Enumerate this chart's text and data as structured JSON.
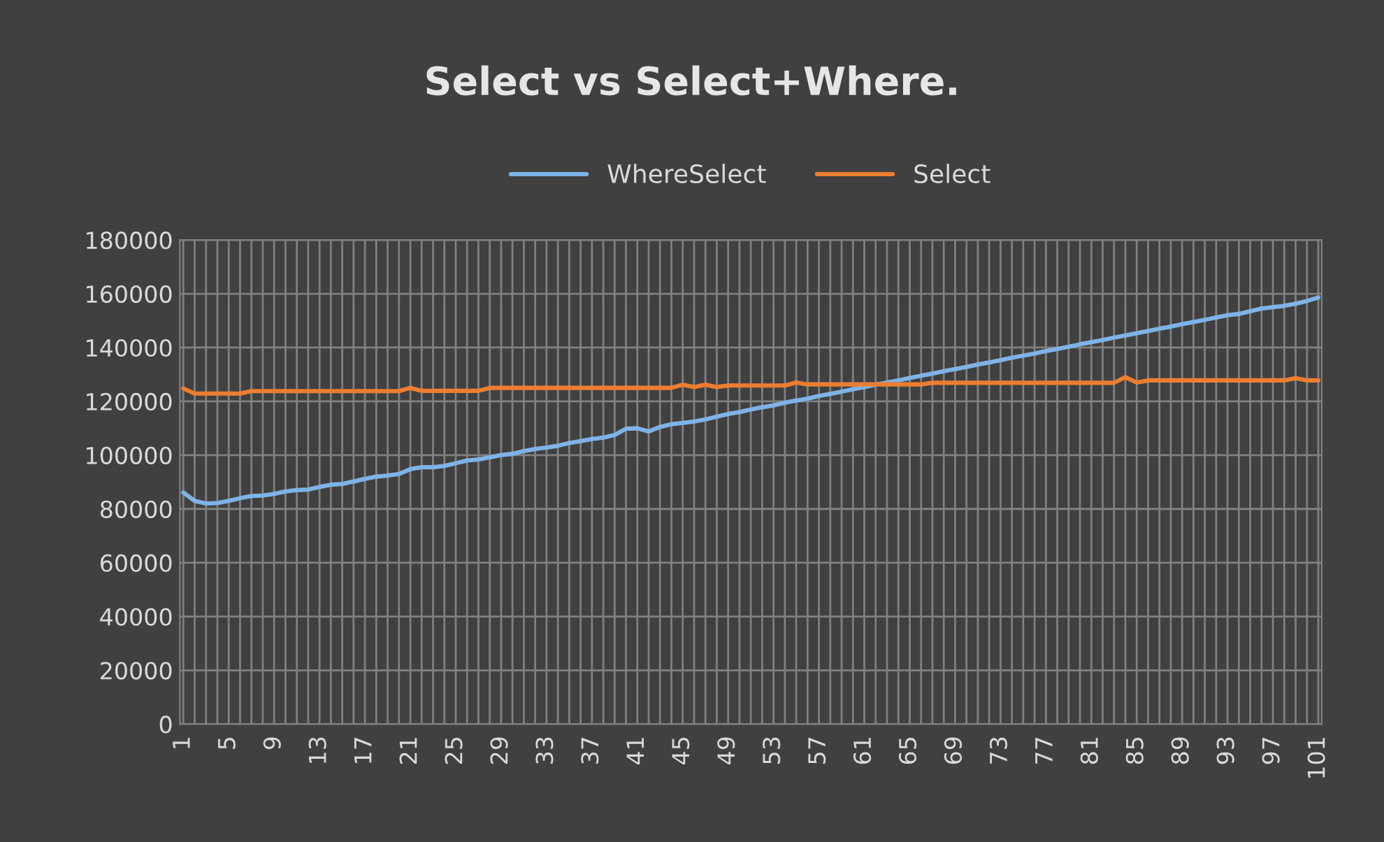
{
  "chart_data": {
    "type": "line",
    "title": "Select vs Select+Where.",
    "categories": [
      "1",
      null,
      null,
      null,
      "5",
      null,
      null,
      null,
      "9",
      null,
      null,
      null,
      "13",
      null,
      null,
      null,
      "17",
      null,
      null,
      null,
      "21",
      null,
      null,
      null,
      "25",
      null,
      null,
      null,
      "29",
      null,
      null,
      null,
      "33",
      null,
      null,
      null,
      "37",
      null,
      null,
      null,
      "41",
      null,
      null,
      null,
      "45",
      null,
      null,
      null,
      "49",
      null,
      null,
      null,
      "53",
      null,
      null,
      null,
      "57",
      null,
      null,
      null,
      "61",
      null,
      null,
      null,
      "65",
      null,
      null,
      null,
      "69",
      null,
      null,
      null,
      "73",
      null,
      null,
      null,
      "77",
      null,
      null,
      null,
      "81",
      null,
      null,
      null,
      "85",
      null,
      null,
      null,
      "89",
      null,
      null,
      null,
      "93",
      null,
      null,
      null,
      "97",
      null,
      null,
      null,
      "101"
    ],
    "series": [
      {
        "name": "WhereSelect",
        "color": "#7eb3e8",
        "values": [
          86100,
          83000,
          82000,
          82200,
          83000,
          84000,
          84800,
          85000,
          85600,
          86500,
          87000,
          87200,
          88200,
          89000,
          89300,
          90200,
          91200,
          92000,
          92400,
          93000,
          94800,
          95500,
          95500,
          96000,
          97000,
          98000,
          98400,
          99200,
          100000,
          100500,
          101500,
          102300,
          102800,
          103500,
          104500,
          105200,
          106000,
          106500,
          107500,
          109800,
          110000,
          108800,
          110500,
          111500,
          112000,
          112500,
          113300,
          114300,
          115300,
          116000,
          117000,
          117800,
          118500,
          119500,
          120300,
          121000,
          122000,
          122800,
          123600,
          124500,
          125300,
          126200,
          127000,
          127800,
          128700,
          129500,
          130300,
          131200,
          132000,
          132800,
          133700,
          134500,
          135300,
          136200,
          137000,
          137800,
          138700,
          139500,
          140300,
          141200,
          142000,
          142800,
          143700,
          144500,
          145300,
          146200,
          147000,
          147800,
          148700,
          149500,
          150300,
          151200,
          152000,
          152500,
          153500,
          154500,
          155000,
          155500,
          156300,
          157300,
          158600
        ]
      },
      {
        "name": "Select",
        "color": "#ed7d31",
        "values": [
          124800,
          122900,
          122900,
          122900,
          122900,
          122900,
          123800,
          123800,
          123800,
          123800,
          123800,
          123800,
          123800,
          123800,
          123800,
          123800,
          123800,
          123800,
          123800,
          123800,
          125000,
          123900,
          123900,
          123900,
          123900,
          123900,
          123900,
          125000,
          125000,
          125000,
          125000,
          125000,
          125000,
          125000,
          125000,
          125000,
          125000,
          125000,
          125000,
          125000,
          125000,
          125000,
          125000,
          125000,
          126200,
          125300,
          126200,
          125300,
          125900,
          125900,
          125900,
          125900,
          125900,
          125900,
          127000,
          126300,
          126300,
          126300,
          126300,
          126300,
          126300,
          126300,
          126300,
          126300,
          126300,
          126300,
          126900,
          126900,
          126900,
          126900,
          126900,
          126900,
          126900,
          126900,
          126900,
          126900,
          126900,
          126900,
          126900,
          126900,
          126900,
          126900,
          126900,
          129000,
          127000,
          127800,
          127800,
          127800,
          127800,
          127800,
          127800,
          127800,
          127800,
          127800,
          127800,
          127800,
          127800,
          127800,
          128600,
          127800,
          127800
        ]
      }
    ],
    "ylim": [
      0,
      180000
    ],
    "yticks": [
      0,
      20000,
      40000,
      60000,
      80000,
      100000,
      120000,
      140000,
      160000,
      180000
    ],
    "grid": true,
    "legend": "top",
    "line_style": "solid",
    "marker": "none"
  }
}
